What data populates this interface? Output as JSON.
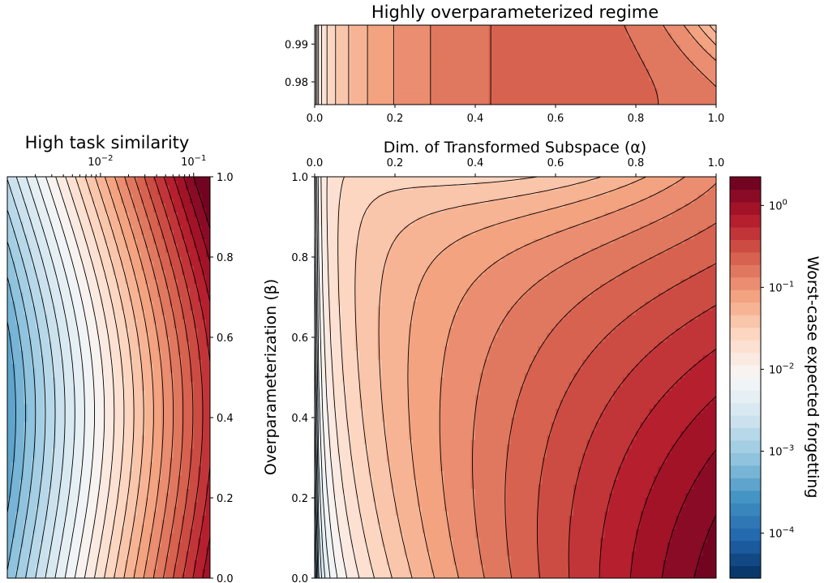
{
  "chart_data": [
    {
      "id": "top",
      "type": "contour",
      "title": "Highly overparameterized regime",
      "x": {
        "ticks": [
          "0.0",
          "0.2",
          "0.4",
          "0.6",
          "0.8",
          "1.0"
        ],
        "range": [
          0,
          1
        ]
      },
      "y": {
        "ticks": [
          "0.98",
          "0.99"
        ],
        "range": [
          0.974,
          0.995
        ]
      }
    },
    {
      "id": "left",
      "type": "contour",
      "title": "High task similarity",
      "x": {
        "scale": "log",
        "ticks": [
          {
            "base": "10",
            "exp": "−2"
          },
          {
            "base": "10",
            "exp": "−1"
          }
        ],
        "range": [
          0.001,
          0.15
        ]
      },
      "y": {
        "ticks": [
          "0.0",
          "0.2",
          "0.4",
          "0.6",
          "0.8",
          "1.0"
        ],
        "range": [
          0,
          1
        ],
        "side": "right"
      }
    },
    {
      "id": "main",
      "type": "contour",
      "xlabel": "Dim. of Transformed Subspace (α)",
      "ylabel": "Overparameterization (β)",
      "x": {
        "ticks": [
          "0.0",
          "0.2",
          "0.4",
          "0.6",
          "0.8",
          "1.0"
        ],
        "range": [
          0,
          1
        ],
        "side": "top"
      },
      "y": {
        "ticks": [
          "0.0",
          "0.2",
          "0.4",
          "0.6",
          "0.8",
          "1.0"
        ],
        "range": [
          0,
          1
        ]
      },
      "colormap": "RdBu_r",
      "levels": 32
    }
  ],
  "colorbar": {
    "label": "Worst-case expected forgetting",
    "scale": "log",
    "ticks": [
      {
        "base": "10",
        "exp": "0"
      },
      {
        "base": "10",
        "exp": "−1"
      },
      {
        "base": "10",
        "exp": "−2"
      },
      {
        "base": "10",
        "exp": "−3"
      },
      {
        "base": "10",
        "exp": "−4"
      }
    ],
    "range_log10": [
      -4.55,
      0.35
    ],
    "colors": [
      "#053061",
      "#2166ac",
      "#4393c3",
      "#92c5de",
      "#d1e5f0",
      "#f7f7f7",
      "#fddbc7",
      "#f4a582",
      "#d6604d",
      "#b2182b",
      "#67001f"
    ]
  }
}
